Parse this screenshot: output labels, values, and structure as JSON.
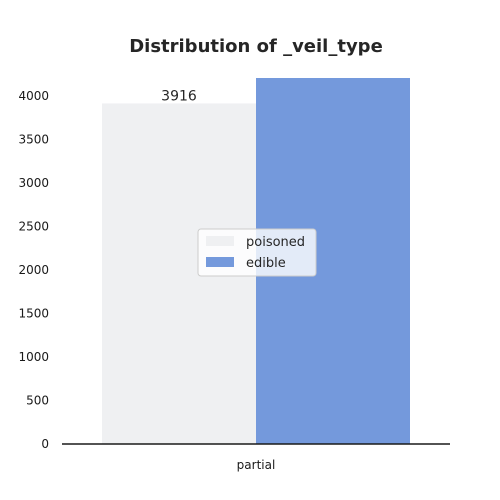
{
  "chart_data": {
    "type": "bar",
    "title": "Distribution of _veil_type",
    "xlabel": "",
    "ylabel": "",
    "categories": [
      "partial"
    ],
    "series": [
      {
        "name": "poisoned",
        "values": [
          3916
        ],
        "color": "#eff0f2",
        "data_label": "3916"
      },
      {
        "name": "edible",
        "values": [
          4208
        ],
        "color": "#7499dc",
        "data_label": ""
      }
    ],
    "yticks": [
      0,
      500,
      1000,
      1500,
      2000,
      2500,
      3000,
      3500,
      4000
    ],
    "ylim": [
      0,
      4300
    ],
    "grid": false,
    "legend_position": "center"
  }
}
